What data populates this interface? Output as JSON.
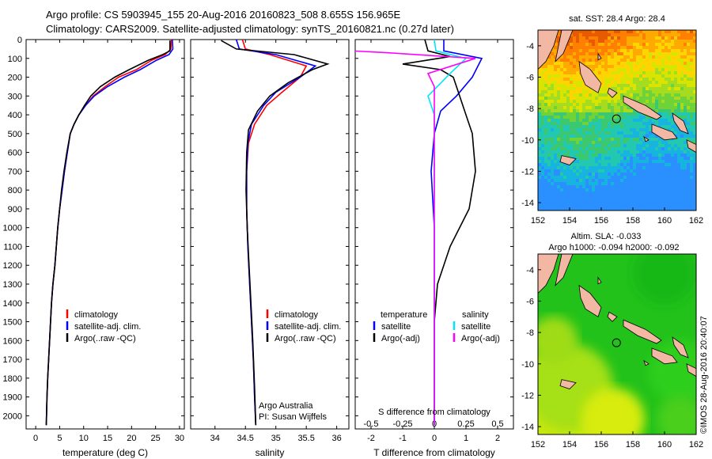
{
  "header": {
    "line1": "Argo profile: CS 5903945_155 20-Aug-2016 20160823_508 8.655S 156.965E",
    "line2": "Climatology: CARS2009. Satellite-adjusted climatology: synTS_20160821.nc (0.27d later)"
  },
  "watermark": "©IMOS 28-Aug-2016 20:40:07",
  "colors": {
    "climatology": "#ff0000",
    "satellite": "#0000ff",
    "argo": "#000000",
    "sat_salinity": "#00e5ff",
    "argo_adj_salinity": "#ff00ff"
  },
  "chart_data": [
    {
      "type": "line",
      "panel": "temperature",
      "xlabel": "temperature (deg C)",
      "ylabel": "",
      "xlim": [
        -2,
        31
      ],
      "ylim": [
        2070,
        0
      ],
      "xticks": [
        "0",
        "5",
        "10",
        "15",
        "20",
        "25",
        "30"
      ],
      "yticks": [
        "0",
        "100",
        "200",
        "300",
        "400",
        "500",
        "600",
        "700",
        "800",
        "900",
        "1000",
        "1100",
        "1200",
        "1300",
        "1400",
        "1500",
        "1600",
        "1700",
        "1800",
        "1900",
        "2000"
      ],
      "legend": [
        "climatology",
        "satellite-adj. clim.",
        "Argo(..raw -QC)"
      ],
      "series": [
        {
          "name": "climatology",
          "color": "#ff0000",
          "points": [
            [
              28.3,
              0
            ],
            [
              28.2,
              50
            ],
            [
              27.0,
              80
            ],
            [
              24.2,
              110
            ],
            [
              21.0,
              160
            ],
            [
              17.3,
              200
            ],
            [
              14.5,
              250
            ],
            [
              12.0,
              300
            ],
            [
              10.4,
              350
            ],
            [
              9.0,
              400
            ],
            [
              8.0,
              450
            ],
            [
              7.2,
              500
            ],
            [
              6.6,
              600
            ],
            [
              6.0,
              700
            ],
            [
              5.5,
              800
            ],
            [
              5.0,
              900
            ],
            [
              4.6,
              1000
            ],
            [
              4.3,
              1100
            ],
            [
              4.0,
              1200
            ],
            [
              3.6,
              1300
            ],
            [
              3.3,
              1400
            ],
            [
              3.1,
              1500
            ],
            [
              2.9,
              1600
            ],
            [
              2.7,
              1700
            ],
            [
              2.5,
              1800
            ],
            [
              2.35,
              1900
            ],
            [
              2.2,
              2050
            ]
          ]
        },
        {
          "name": "satellite-adj. clim.",
          "color": "#0000ff",
          "points": [
            [
              28.5,
              0
            ],
            [
              28.6,
              50
            ],
            [
              27.8,
              80
            ],
            [
              25.2,
              110
            ],
            [
              21.8,
              160
            ],
            [
              18.5,
              200
            ],
            [
              15.0,
              250
            ],
            [
              12.2,
              300
            ],
            [
              10.4,
              350
            ],
            [
              9.0,
              400
            ],
            [
              8.0,
              450
            ],
            [
              7.2,
              500
            ],
            [
              6.6,
              600
            ],
            [
              6.0,
              700
            ],
            [
              5.5,
              800
            ],
            [
              5.0,
              900
            ],
            [
              4.6,
              1000
            ],
            [
              4.3,
              1100
            ],
            [
              4.0,
              1200
            ],
            [
              3.6,
              1300
            ],
            [
              3.3,
              1400
            ],
            [
              3.1,
              1500
            ],
            [
              2.9,
              1600
            ],
            [
              2.7,
              1700
            ],
            [
              2.5,
              1800
            ],
            [
              2.35,
              1900
            ],
            [
              2.2,
              2050
            ]
          ]
        },
        {
          "name": "Argo(..raw -QC)",
          "color": "#000000",
          "points": [
            [
              28.0,
              5
            ],
            [
              28.0,
              60
            ],
            [
              26.5,
              80
            ],
            [
              23.5,
              110
            ],
            [
              19.5,
              160
            ],
            [
              16.5,
              200
            ],
            [
              13.5,
              250
            ],
            [
              11.5,
              300
            ],
            [
              10.2,
              350
            ],
            [
              9.0,
              400
            ],
            [
              8.0,
              450
            ],
            [
              7.2,
              500
            ],
            [
              6.5,
              600
            ],
            [
              5.9,
              700
            ],
            [
              5.4,
              800
            ],
            [
              5.0,
              900
            ],
            [
              4.6,
              1000
            ],
            [
              4.3,
              1100
            ],
            [
              4.0,
              1200
            ],
            [
              3.6,
              1300
            ],
            [
              3.3,
              1400
            ],
            [
              3.1,
              1500
            ],
            [
              2.9,
              1600
            ],
            [
              2.7,
              1700
            ],
            [
              2.5,
              1800
            ],
            [
              2.35,
              1900
            ],
            [
              2.2,
              2050
            ]
          ]
        }
      ]
    },
    {
      "type": "line",
      "panel": "salinity",
      "xlabel": "salinity",
      "xlim": [
        33.6,
        36.2
      ],
      "ylim": [
        2070,
        0
      ],
      "xticks": [
        "34",
        "34.5",
        "35",
        "35.5",
        "36"
      ],
      "legend": [
        "climatology",
        "satellite-adj. clim.",
        "Argo(..raw -QC)"
      ],
      "annotation": [
        "Argo Australia",
        "PI: Susan Wijffels"
      ],
      "series": [
        {
          "name": "climatology",
          "color": "#ff0000",
          "points": [
            [
              34.45,
              0
            ],
            [
              34.5,
              50
            ],
            [
              34.9,
              80
            ],
            [
              35.5,
              140
            ],
            [
              35.4,
              200
            ],
            [
              35.1,
              280
            ],
            [
              34.85,
              350
            ],
            [
              34.65,
              450
            ],
            [
              34.55,
              550
            ],
            [
              34.52,
              700
            ],
            [
              34.52,
              900
            ],
            [
              34.54,
              1100
            ],
            [
              34.57,
              1300
            ],
            [
              34.6,
              1500
            ],
            [
              34.63,
              1700
            ],
            [
              34.65,
              1900
            ],
            [
              34.67,
              2050
            ]
          ]
        },
        {
          "name": "satellite-adj. clim.",
          "color": "#0000ff",
          "points": [
            [
              34.35,
              0
            ],
            [
              34.4,
              50
            ],
            [
              35.0,
              80
            ],
            [
              35.65,
              140
            ],
            [
              35.4,
              200
            ],
            [
              35.0,
              280
            ],
            [
              34.8,
              350
            ],
            [
              34.6,
              450
            ],
            [
              34.54,
              550
            ],
            [
              34.52,
              700
            ],
            [
              34.52,
              900
            ],
            [
              34.54,
              1100
            ],
            [
              34.57,
              1300
            ],
            [
              34.6,
              1500
            ],
            [
              34.63,
              1700
            ],
            [
              34.65,
              1900
            ],
            [
              34.67,
              2050
            ]
          ]
        },
        {
          "name": "Argo(..raw -QC)",
          "color": "#000000",
          "points": [
            [
              34.1,
              5
            ],
            [
              34.35,
              50
            ],
            [
              35.3,
              80
            ],
            [
              35.85,
              130
            ],
            [
              35.6,
              160
            ],
            [
              35.2,
              230
            ],
            [
              34.9,
              300
            ],
            [
              34.7,
              380
            ],
            [
              34.55,
              480
            ],
            [
              34.52,
              600
            ],
            [
              34.51,
              800
            ],
            [
              34.53,
              1000
            ],
            [
              34.56,
              1200
            ],
            [
              34.59,
              1400
            ],
            [
              34.62,
              1600
            ],
            [
              34.65,
              1850
            ],
            [
              34.67,
              2050
            ]
          ]
        }
      ]
    },
    {
      "type": "line",
      "panel": "difference",
      "xlabel": "T difference from climatology",
      "xlabel_top": "S difference from climatology",
      "xlim": [
        -2.5,
        2.5
      ],
      "ylim": [
        2070,
        0
      ],
      "xticks": [
        "-2",
        "-1",
        "0",
        "1",
        "2"
      ],
      "xticks_top": [
        "-0.5",
        "-0.25",
        "0",
        "0.25",
        "0.5"
      ],
      "legend_temperature": {
        "title": "temperature",
        "items": [
          "satellite",
          "Argo(-adj)"
        ]
      },
      "legend_salinity": {
        "title": "salinity",
        "items": [
          "satellite",
          "Argo(-adj)"
        ]
      },
      "series": [
        {
          "name": "satellite",
          "quantity": "temperature",
          "color": "#0000ff",
          "points": [
            [
              0.3,
              0
            ],
            [
              0.3,
              60
            ],
            [
              1.5,
              100
            ],
            [
              1.2,
              200
            ],
            [
              0.7,
              300
            ],
            [
              0.2,
              380
            ],
            [
              0.0,
              500
            ],
            [
              -0.1,
              700
            ],
            [
              0.0,
              1000
            ],
            [
              0.0,
              1500
            ],
            [
              0.0,
              2050
            ]
          ]
        },
        {
          "name": "Argo(-adj)",
          "quantity": "temperature",
          "color": "#000000",
          "points": [
            [
              -0.3,
              0
            ],
            [
              -0.2,
              60
            ],
            [
              0.5,
              90
            ],
            [
              -1.0,
              130
            ],
            [
              0.2,
              160
            ],
            [
              0.6,
              200
            ],
            [
              0.8,
              300
            ],
            [
              1.0,
              400
            ],
            [
              1.2,
              500
            ],
            [
              1.3,
              700
            ],
            [
              1.1,
              900
            ],
            [
              0.5,
              1100
            ],
            [
              0.1,
              1300
            ],
            [
              0.0,
              1500
            ],
            [
              0.0,
              2050
            ]
          ]
        },
        {
          "name": "satellite",
          "quantity": "salinity",
          "color": "#00e5ff",
          "points": [
            [
              0.0,
              0
            ],
            [
              0.05,
              60
            ],
            [
              1.0,
              100
            ],
            [
              0.5,
              180
            ],
            [
              -0.2,
              300
            ],
            [
              0.0,
              400
            ],
            [
              0.0,
              600
            ],
            [
              0.0,
              1000
            ],
            [
              0.0,
              2050
            ]
          ]
        },
        {
          "name": "Argo(-adj)",
          "quantity": "salinity",
          "color": "#ff00ff",
          "points": [
            [
              -2.6,
              60
            ],
            [
              -1.5,
              70
            ],
            [
              1.3,
              100
            ],
            [
              -0.2,
              180
            ],
            [
              0.0,
              250
            ],
            [
              0.0,
              400
            ],
            [
              0.0,
              2050
            ]
          ]
        }
      ]
    },
    {
      "type": "heatmap",
      "panel": "sst-map",
      "title": "sat. SST: 28.4 Argo: 28.4",
      "xlim": [
        152,
        162
      ],
      "ylim": [
        -14.5,
        -3
      ],
      "xticks": [
        "152",
        "154",
        "156",
        "158",
        "160",
        "162"
      ],
      "yticks": [
        "-4",
        "-6",
        "-8",
        "-10",
        "-12",
        "-14"
      ],
      "argo_location": [
        156.965,
        -8.655
      ]
    },
    {
      "type": "heatmap",
      "panel": "sla-map",
      "title": "Altim. SLA: -0.033",
      "subtitle": "Argo h1000: -0.094 h2000: -0.092",
      "xlim": [
        152,
        162
      ],
      "ylim": [
        -14.5,
        -3
      ],
      "xticks": [
        "152",
        "154",
        "156",
        "158",
        "160",
        "162"
      ],
      "yticks": [
        "-4",
        "-6",
        "-8",
        "-10",
        "-12",
        "-14"
      ],
      "argo_location": [
        156.965,
        -8.655
      ]
    }
  ]
}
